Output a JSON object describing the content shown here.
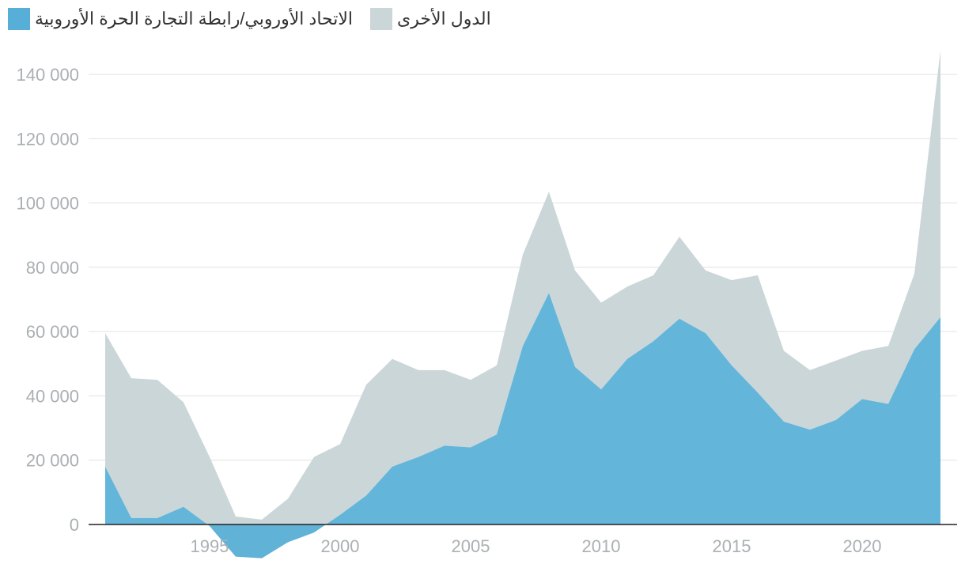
{
  "chart_data": {
    "type": "area",
    "x": [
      1991,
      1992,
      1993,
      1994,
      1995,
      1996,
      1997,
      1998,
      1999,
      2000,
      2001,
      2002,
      2003,
      2004,
      2005,
      2006,
      2007,
      2008,
      2009,
      2010,
      2011,
      2012,
      2013,
      2014,
      2015,
      2016,
      2017,
      2018,
      2019,
      2020,
      2021,
      2022,
      2023
    ],
    "series": [
      {
        "name": "الاتحاد الأوروبي/رابطة التجارة الحرة الأوروبية",
        "color": "#57afd7",
        "values": [
          18000,
          2000,
          2000,
          5500,
          -500,
          -10000,
          -10500,
          -5500,
          -2500,
          3000,
          9000,
          18000,
          21000,
          24500,
          24000,
          28000,
          55500,
          72000,
          49000,
          42000,
          51500,
          57000,
          64000,
          59500,
          49500,
          41000,
          32000,
          29500,
          32500,
          39000,
          37500,
          54500,
          64500
        ]
      },
      {
        "name": "الدول الأخرى",
        "color": "#cbd6d9",
        "values": [
          41500,
          43500,
          43000,
          32500,
          21500,
          12500,
          12000,
          13500,
          23500,
          22000,
          34500,
          33500,
          27000,
          23500,
          21000,
          21500,
          28500,
          31500,
          30000,
          27000,
          22500,
          20500,
          25500,
          19500,
          26500,
          36500,
          22000,
          18500,
          18500,
          15000,
          18000,
          23500,
          83000
        ]
      }
    ],
    "legend": [
      {
        "label": "الاتحاد الأوروبي/رابطة التجارة الحرة الأوروبية",
        "color": "#57afd7"
      },
      {
        "label": "الدول الأخرى",
        "color": "#cbd6d9"
      }
    ],
    "x_ticks": [
      1995,
      2000,
      2005,
      2010,
      2015,
      2020
    ],
    "y_ticks": [
      0,
      20000,
      40000,
      60000,
      80000,
      100000,
      120000,
      140000
    ],
    "y_tick_labels": [
      "0",
      "20 000",
      "40 000",
      "60 000",
      "80 000",
      "100 000",
      "120 000",
      "140 000"
    ],
    "x_tick_labels": [
      "1995",
      "2000",
      "2005",
      "2010",
      "2015",
      "2020"
    ],
    "xlim": [
      1991,
      2023
    ],
    "ylim": [
      -12000,
      148000
    ],
    "grid": "horizontal",
    "stacked": true,
    "legend_position": "top-left"
  }
}
